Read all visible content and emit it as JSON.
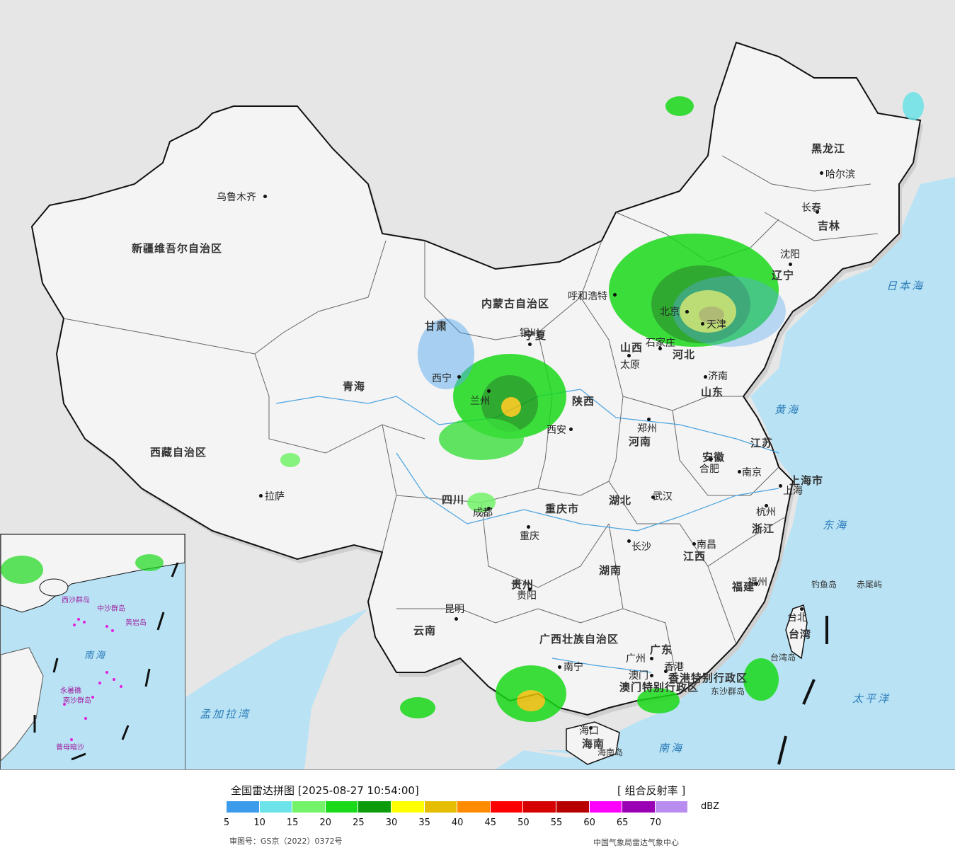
{
  "map": {
    "cities": [
      {
        "name": "乌鲁木齐"
      },
      {
        "name": "哈尔滨"
      },
      {
        "name": "长春"
      },
      {
        "name": "沈阳"
      },
      {
        "name": "呼和浩特"
      },
      {
        "name": "北京"
      },
      {
        "name": "天津"
      },
      {
        "name": "太原"
      },
      {
        "name": "石家庄"
      },
      {
        "name": "济南"
      },
      {
        "name": "银川"
      },
      {
        "name": "西宁"
      },
      {
        "name": "兰州"
      },
      {
        "name": "西安"
      },
      {
        "name": "郑州"
      },
      {
        "name": "合肥"
      },
      {
        "name": "南京"
      },
      {
        "name": "上海"
      },
      {
        "name": "拉萨"
      },
      {
        "name": "成都"
      },
      {
        "name": "重庆"
      },
      {
        "name": "武汉"
      },
      {
        "name": "杭州"
      },
      {
        "name": "长沙"
      },
      {
        "name": "南昌"
      },
      {
        "name": "贵阳"
      },
      {
        "name": "福州"
      },
      {
        "name": "昆明"
      },
      {
        "name": "台北"
      },
      {
        "name": "南宁"
      },
      {
        "name": "广州"
      },
      {
        "name": "香港"
      },
      {
        "name": "澳门"
      },
      {
        "name": "海口"
      }
    ],
    "provinces": [
      "新疆维吾尔自治区",
      "西藏自治区",
      "青海",
      "甘肃",
      "内蒙古自治区",
      "黑龙江",
      "吉林",
      "辽宁",
      "河北",
      "山西",
      "山东",
      "陕西",
      "河南",
      "江苏",
      "安徽",
      "上海市",
      "浙江",
      "湖北",
      "四川",
      "重庆市",
      "湖南",
      "江西",
      "福建",
      "贵州",
      "云南",
      "广西壮族自治区",
      "广东",
      "台湾",
      "海南",
      "香港特别行政区",
      "澳门特别行政区",
      "宁夏"
    ],
    "seas": [
      "日本海",
      "黄海",
      "东海",
      "太平洋",
      "南海",
      "孟加拉湾"
    ],
    "islands": [
      "钓鱼岛",
      "赤尾屿",
      "台湾岛",
      "东沙群岛",
      "海南岛"
    ],
    "inset_labels": [
      "南海",
      "西沙群岛",
      "中沙群岛",
      "黄岩岛",
      "南沙群岛",
      "曾母暗沙",
      "永暑礁"
    ]
  },
  "legend": {
    "title": "全国雷达拼图 [2025-08-27 10:54:00]",
    "product": "[ 组合反射率 ]",
    "unit": "dBZ",
    "colors": [
      "#3c9ceb",
      "#6be3e8",
      "#73f26a",
      "#19d919",
      "#0b9b0b",
      "#ffff00",
      "#e6be00",
      "#ff8c00",
      "#ff0000",
      "#d60000",
      "#b80000",
      "#ff00ff",
      "#9a00b4",
      "#b98df0"
    ],
    "ticks": [
      "5",
      "10",
      "15",
      "20",
      "25",
      "30",
      "35",
      "40",
      "45",
      "50",
      "55",
      "60",
      "65",
      "70"
    ],
    "approval": "审图号：GS京（2022）0372号",
    "source": "中国气象局雷达气象中心"
  },
  "style": {
    "land": "#f4f4f4",
    "sea": "#b9e3f5",
    "outside": "#e6e6e6",
    "border": "#111111"
  }
}
